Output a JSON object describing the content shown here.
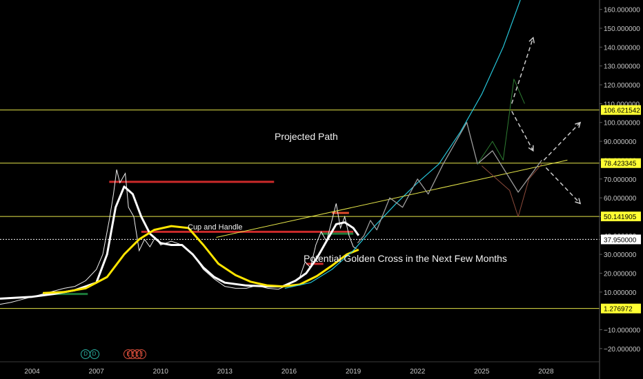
{
  "chart_data": {
    "type": "line",
    "title": "",
    "xlabel": "",
    "ylabel": "",
    "xlim": [
      2002.5,
      2030.5
    ],
    "ylim": [
      -27,
      165
    ],
    "x_ticks": [
      2004,
      2007,
      2010,
      2013,
      2016,
      2019,
      2022,
      2025,
      2028
    ],
    "y_ticks": [
      -20,
      -10,
      10,
      20,
      30,
      40,
      50,
      60,
      70,
      80,
      90,
      100,
      110,
      120,
      130,
      140,
      150,
      160
    ],
    "y_tick_format": "%.6f",
    "grid": false,
    "price_series": [
      [
        2002.5,
        3.5
      ],
      [
        2003.0,
        4.5
      ],
      [
        2003.5,
        6.0
      ],
      [
        2004.0,
        7.5
      ],
      [
        2004.5,
        9.0
      ],
      [
        2005.0,
        10.5
      ],
      [
        2005.5,
        12.0
      ],
      [
        2006.0,
        13.0
      ],
      [
        2006.5,
        16.0
      ],
      [
        2007.0,
        22.0
      ],
      [
        2007.3,
        30.0
      ],
      [
        2007.6,
        48.0
      ],
      [
        2007.8,
        62.0
      ],
      [
        2007.95,
        75.0
      ],
      [
        2008.1,
        68.0
      ],
      [
        2008.35,
        73.0
      ],
      [
        2008.5,
        55.0
      ],
      [
        2008.75,
        50.0
      ],
      [
        2009.0,
        32.0
      ],
      [
        2009.25,
        38.0
      ],
      [
        2009.5,
        34.0
      ],
      [
        2009.75,
        39.0
      ],
      [
        2010.0,
        35.0
      ],
      [
        2010.5,
        37.0
      ],
      [
        2011.0,
        35.0
      ],
      [
        2011.5,
        30.0
      ],
      [
        2012.0,
        22.0
      ],
      [
        2012.5,
        17.0
      ],
      [
        2013.0,
        13.0
      ],
      [
        2013.5,
        12.0
      ],
      [
        2014.0,
        12.0
      ],
      [
        2014.5,
        13.5
      ],
      [
        2015.0,
        12.0
      ],
      [
        2015.5,
        11.5
      ],
      [
        2016.0,
        14.0
      ],
      [
        2016.5,
        18.0
      ],
      [
        2016.75,
        26.0
      ],
      [
        2017.0,
        23.0
      ],
      [
        2017.25,
        35.0
      ],
      [
        2017.5,
        42.0
      ],
      [
        2017.75,
        37.0
      ],
      [
        2018.0,
        48.0
      ],
      [
        2018.2,
        57.0
      ],
      [
        2018.4,
        44.0
      ],
      [
        2018.6,
        50.0
      ],
      [
        2018.8,
        40.0
      ],
      [
        2019.0,
        34.0
      ],
      [
        2019.15,
        33.0
      ]
    ],
    "series": [
      {
        "color": "#ffffff",
        "points": [
          [
            2002.5,
            6.5
          ],
          [
            2004.0,
            7.5
          ],
          [
            2005.0,
            9.0
          ],
          [
            2006.0,
            11.0
          ],
          [
            2007.0,
            15.0
          ],
          [
            2007.5,
            30.0
          ],
          [
            2007.9,
            55.0
          ],
          [
            2008.3,
            66.0
          ],
          [
            2008.7,
            62.0
          ],
          [
            2009.1,
            50.0
          ],
          [
            2009.5,
            41.0
          ],
          [
            2010.0,
            36.0
          ],
          [
            2010.5,
            35.0
          ],
          [
            2011.0,
            35.0
          ],
          [
            2011.5,
            30.0
          ],
          [
            2012.0,
            23.0
          ],
          [
            2012.5,
            18.0
          ],
          [
            2013.0,
            15.0
          ],
          [
            2014.0,
            13.5
          ],
          [
            2015.0,
            13.0
          ],
          [
            2015.7,
            13.0
          ],
          [
            2016.3,
            16.0
          ],
          [
            2016.8,
            20.0
          ],
          [
            2017.3,
            28.0
          ],
          [
            2017.8,
            38.0
          ],
          [
            2018.2,
            46.0
          ],
          [
            2018.6,
            47.0
          ],
          [
            2019.0,
            44.0
          ],
          [
            2019.25,
            40.0
          ]
        ]
      },
      {
        "color": "#ffe500",
        "points": [
          [
            2004.5,
            9.5
          ],
          [
            2005.5,
            10.0
          ],
          [
            2006.5,
            12.0
          ],
          [
            2007.5,
            18.0
          ],
          [
            2008.3,
            30.0
          ],
          [
            2009.0,
            38.0
          ],
          [
            2009.7,
            43.0
          ],
          [
            2010.5,
            45.0
          ],
          [
            2011.3,
            44.0
          ],
          [
            2012.0,
            35.0
          ],
          [
            2012.7,
            25.0
          ],
          [
            2013.5,
            19.0
          ],
          [
            2014.2,
            15.5
          ],
          [
            2015.0,
            13.5
          ],
          [
            2015.7,
            13.0
          ],
          [
            2016.5,
            14.0
          ],
          [
            2017.3,
            18.5
          ],
          [
            2018.0,
            24.0
          ],
          [
            2018.7,
            30.0
          ],
          [
            2019.25,
            32.5
          ]
        ]
      },
      {
        "color": "#26c6da",
        "points": [
          [
            2015.8,
            12.0
          ],
          [
            2017.0,
            15.0
          ],
          [
            2018.0,
            22.0
          ],
          [
            2019.0,
            32.0
          ],
          [
            2020.0,
            45.0
          ],
          [
            2021.0,
            57.0
          ],
          [
            2022.0,
            68.0
          ],
          [
            2023.0,
            78.0
          ],
          [
            2024.0,
            95.0
          ],
          [
            2025.0,
            115.0
          ],
          [
            2026.0,
            140.0
          ],
          [
            2026.8,
            165.0
          ]
        ]
      },
      {
        "color": "#e8e84a",
        "points": [
          [
            2012.6,
            39.0
          ],
          [
            2029.0,
            80.0
          ]
        ]
      },
      {
        "color": "#9e9e9e",
        "points": [
          [
            2019.2,
            36.0
          ],
          [
            2019.5,
            40.0
          ],
          [
            2019.8,
            48.0
          ],
          [
            2020.1,
            43.0
          ],
          [
            2020.7,
            60.0
          ],
          [
            2021.3,
            55.0
          ],
          [
            2022.0,
            70.0
          ],
          [
            2022.5,
            62.0
          ],
          [
            2023.2,
            78.0
          ],
          [
            2024.3,
            100.0
          ],
          [
            2024.8,
            78.0
          ],
          [
            2025.5,
            85.0
          ],
          [
            2026.7,
            63.0
          ],
          [
            2027.8,
            80.0
          ]
        ]
      },
      {
        "color": "#2e7d32",
        "points": [
          [
            2024.8,
            78.0
          ],
          [
            2025.5,
            90.0
          ],
          [
            2026.0,
            80.0
          ],
          [
            2026.5,
            123.0
          ],
          [
            2027.0,
            110.0
          ]
        ]
      },
      {
        "color": "#8d4b3c",
        "points": [
          [
            2025.0,
            77.0
          ],
          [
            2026.3,
            64.0
          ],
          [
            2026.7,
            50.0
          ],
          [
            2027.2,
            70.0
          ],
          [
            2027.8,
            78.0
          ]
        ]
      }
    ],
    "horizontal_levels": [
      {
        "value": 106.621542,
        "label": "106.621542",
        "color": "#e6e64a"
      },
      {
        "value": 78.423345,
        "label": "78.423345",
        "color": "#e6e64a"
      },
      {
        "value": 50.141905,
        "label": "50.141905",
        "color": "#e6e64a"
      },
      {
        "value": 1.276972,
        "label": "1.276972",
        "color": "#e6e64a"
      },
      {
        "value": 37.95,
        "label": "37.950000",
        "color": "#ffffff",
        "dotted": true
      }
    ],
    "zones": [
      {
        "x_from": 2007.6,
        "x_to": 2015.3,
        "value": 68.5,
        "color": "#cc2a2a"
      },
      {
        "x_from": 2009.1,
        "x_to": 2019.0,
        "value": 42.0,
        "color": "#cc2a2a"
      },
      {
        "x_from": 2016.8,
        "x_to": 2017.6,
        "value": 25.0,
        "color": "#cc2a2a"
      },
      {
        "x_from": 2018.0,
        "x_to": 2018.8,
        "value": 52.0,
        "color": "#e04a2a"
      },
      {
        "x_from": 2017.5,
        "x_to": 2019.0,
        "value": 41.0,
        "color": "#1b7a3a"
      },
      {
        "x_from": 2004.5,
        "x_to": 2006.6,
        "value": 9.0,
        "color": "#1b7a3a"
      }
    ],
    "arrows": [
      {
        "from": [
          2026.4,
          110.0
        ],
        "to": [
          2027.4,
          145.0
        ]
      },
      {
        "from": [
          2026.4,
          106.0
        ],
        "to": [
          2027.4,
          85.0
        ]
      },
      {
        "from": [
          2027.9,
          80.0
        ],
        "to": [
          2029.6,
          100.0
        ]
      },
      {
        "from": [
          2028.0,
          76.0
        ],
        "to": [
          2029.6,
          57.0
        ]
      }
    ],
    "annotations": [
      {
        "text": "Projected Path"
      },
      {
        "text": "Cup and Handle"
      },
      {
        "text": "Potential Golden Cross in the Next Few Months"
      }
    ],
    "event_markers": [
      {
        "label": "D",
        "year": 2006.5,
        "color": "#2bb3a3"
      },
      {
        "label": "D",
        "year": 2006.9,
        "color": "#2bb3a3"
      },
      {
        "label": "E",
        "year": 2008.5,
        "color": "#e0503c"
      },
      {
        "label": "E",
        "year": 2008.7,
        "color": "#e0503c"
      },
      {
        "label": "E",
        "year": 2008.9,
        "color": "#e0503c"
      },
      {
        "label": "E",
        "year": 2009.1,
        "color": "#e0503c"
      }
    ]
  }
}
